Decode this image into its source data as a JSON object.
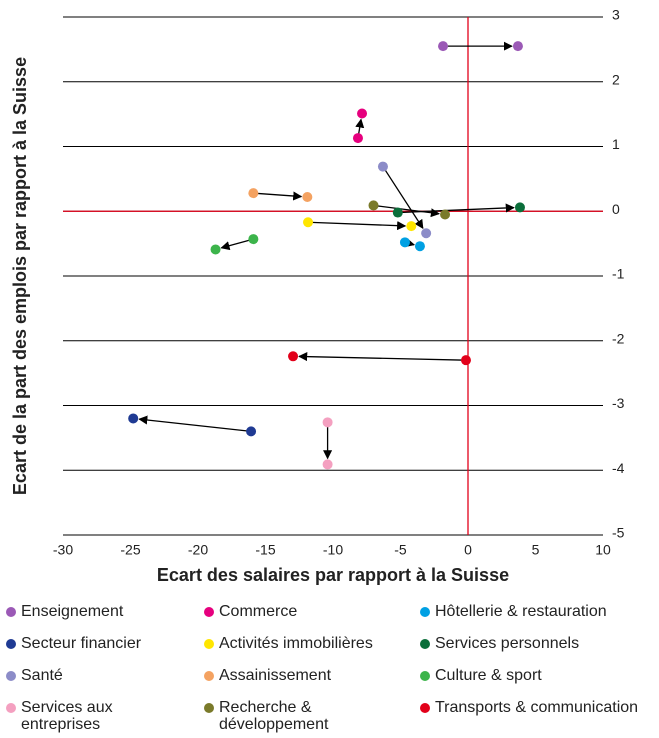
{
  "chart_data": {
    "type": "scatter",
    "xlabel": "Ecart des salaires par rapport à la Suisse",
    "ylabel": "Ecart de la part des emplois par rapport à la Suisse",
    "xlim": [
      -30,
      10
    ],
    "xticks": [
      -30,
      -25,
      -20,
      -15,
      -10,
      -5,
      0,
      5,
      10
    ],
    "ylim": [
      -5,
      3
    ],
    "yticks": [
      -5,
      -4,
      -3,
      -2,
      -1,
      0,
      1,
      2,
      3
    ],
    "grid": true,
    "grid_color": "#000000",
    "ref_lines": [
      {
        "axis": "x",
        "value": 0
      },
      {
        "axis": "y",
        "value": 0
      }
    ],
    "ref_color": "#e2001a",
    "legend": "bottom",
    "series": [
      {
        "name": "Enseignement",
        "color": "#9b59b6",
        "x": [
          -1.85,
          3.7
        ],
        "values": [
          2.55,
          2.55
        ]
      },
      {
        "name": "Commerce",
        "color": "#e6007e",
        "x": [
          -8.15,
          -7.85
        ],
        "values": [
          1.13,
          1.51
        ]
      },
      {
        "name": "Hôtellerie & restauration",
        "color": "#00a0e3",
        "x": [
          -4.67,
          -3.56
        ],
        "values": [
          -0.48,
          -0.54
        ]
      },
      {
        "name": "Secteur financier",
        "color": "#1f3a93",
        "x": [
          -16.07,
          -24.8
        ],
        "values": [
          -3.4,
          -3.2
        ]
      },
      {
        "name": "Activités immobilières",
        "color": "#ffe600",
        "x": [
          -11.85,
          -4.2
        ],
        "values": [
          -0.17,
          -0.23
        ]
      },
      {
        "name": "Services personnels",
        "color": "#0a6e3a",
        "x": [
          -5.2,
          3.85
        ],
        "values": [
          -0.02,
          0.06
        ]
      },
      {
        "name": "Santé",
        "color": "#8c8cc8",
        "x": [
          -6.3,
          -3.1
        ],
        "values": [
          0.69,
          -0.34
        ]
      },
      {
        "name": "Assainissement",
        "color": "#f4a261",
        "x": [
          -15.9,
          -11.9
        ],
        "values": [
          0.28,
          0.22
        ]
      },
      {
        "name": "Culture & sport",
        "color": "#3cb44b",
        "x": [
          -15.9,
          -18.7
        ],
        "values": [
          -0.43,
          -0.59
        ]
      },
      {
        "name": "Services aux entreprises",
        "color": "#f4a0c0",
        "x": [
          -10.4,
          -10.4
        ],
        "values": [
          -3.26,
          -3.91
        ]
      },
      {
        "name": "Recherche & développement",
        "color": "#7a7a2a",
        "x": [
          -7.0,
          -1.7
        ],
        "values": [
          0.09,
          -0.05
        ]
      },
      {
        "name": "Transports & communication",
        "color": "#e2001a",
        "x": [
          -0.15,
          -12.96
        ],
        "values": [
          -2.3,
          -2.24
        ]
      }
    ]
  }
}
